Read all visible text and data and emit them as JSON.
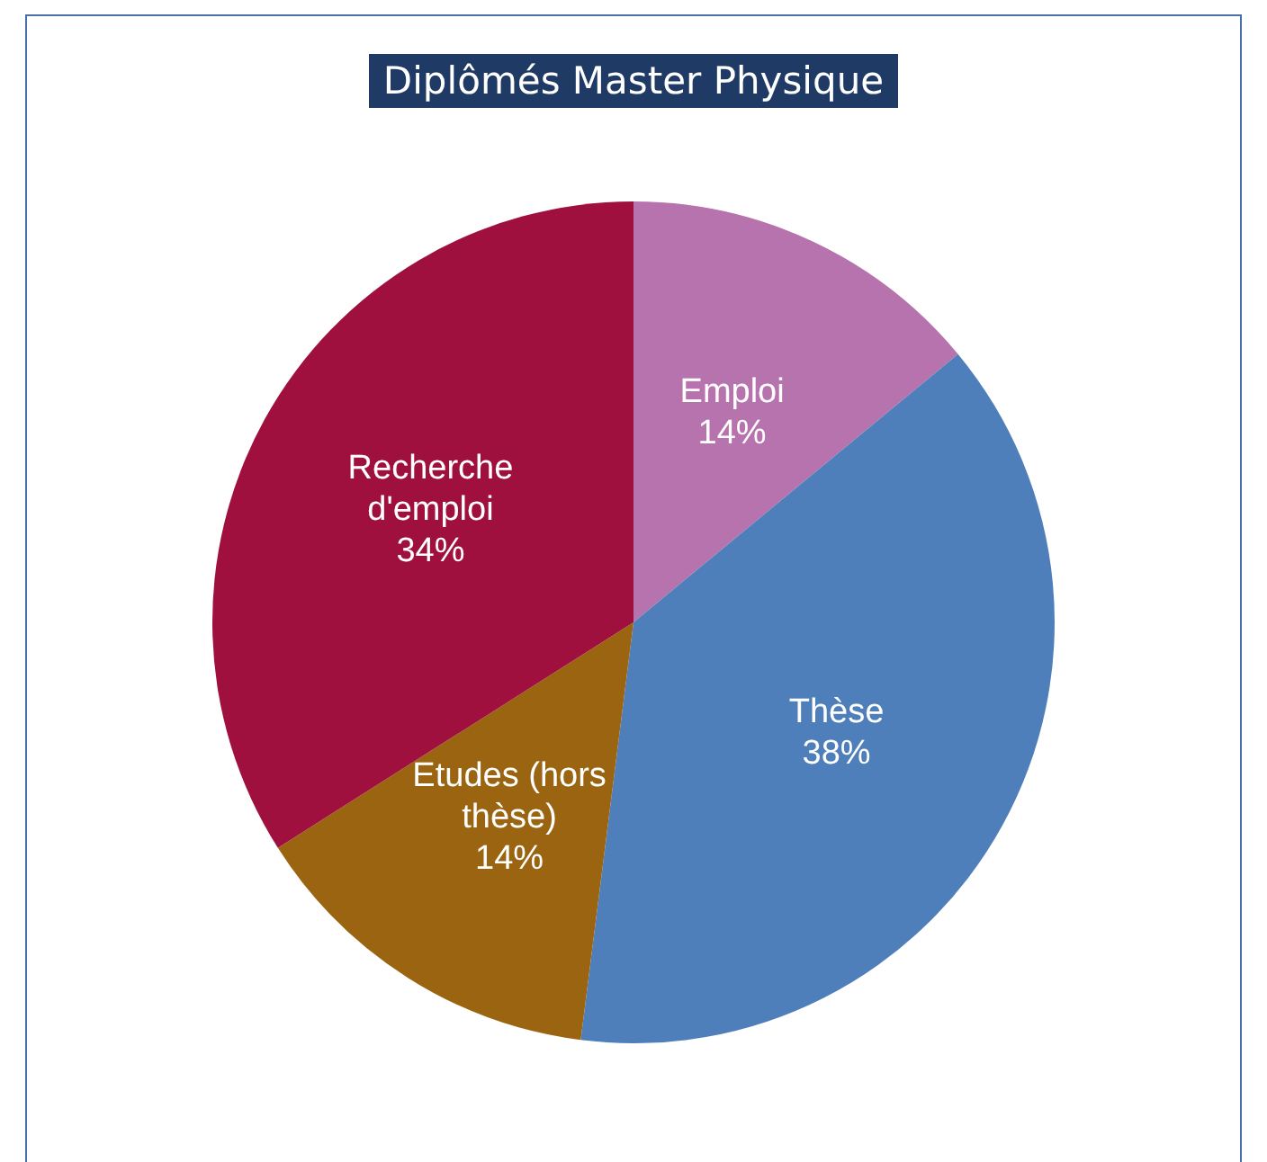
{
  "chart_data": {
    "type": "pie",
    "title": "Diplômés  Master Physique",
    "categories": [
      "Emploi",
      "Thèse",
      "Etudes (hors thèse)",
      "Recherche d'emploi"
    ],
    "values": [
      14,
      38,
      14,
      34
    ],
    "colors": [
      "#b673ad",
      "#4f7fba",
      "#9a6410",
      "#a0103f"
    ],
    "value_labels": [
      "14%",
      "38%",
      "14%",
      "34%"
    ],
    "legend": false
  }
}
